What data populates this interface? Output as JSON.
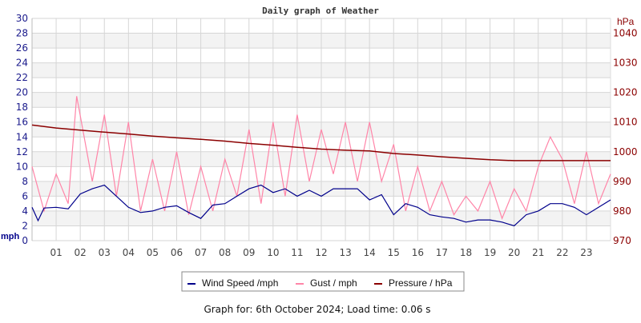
{
  "chart_data": {
    "type": "line",
    "title": "Daily graph of Weather",
    "footer": "Graph for: 6th October 2024; Load time: 0.06 s",
    "x_tick_labels": [
      "01",
      "02",
      "03",
      "04",
      "05",
      "06",
      "07",
      "08",
      "09",
      "10",
      "11",
      "12",
      "13",
      "14",
      "15",
      "16",
      "17",
      "18",
      "19",
      "20",
      "21",
      "22",
      "23"
    ],
    "x_range_hours": [
      0,
      24
    ],
    "left_axis": {
      "label": "mph",
      "range": [
        0,
        30
      ],
      "ticks": [
        0,
        2,
        4,
        6,
        8,
        10,
        12,
        14,
        16,
        18,
        20,
        22,
        24,
        26,
        28,
        30
      ],
      "color": "#1a1a8c"
    },
    "right_axis": {
      "label": "hPa",
      "range": [
        970,
        1045
      ],
      "ticks": [
        970,
        980,
        990,
        1000,
        1010,
        1020,
        1030,
        1040
      ],
      "color": "#8b0000"
    },
    "grid": true,
    "legend_placement": "bottom",
    "series": [
      {
        "name": "Wind Speed /mph",
        "axis": "left",
        "color": "#00008b",
        "x": [
          0,
          0.25,
          0.5,
          1,
          1.5,
          2,
          2.5,
          3,
          3.5,
          4,
          4.5,
          5,
          5.5,
          6,
          6.5,
          7,
          7.5,
          8,
          8.5,
          9,
          9.5,
          10,
          10.5,
          11,
          11.5,
          12,
          12.5,
          13,
          13.5,
          14,
          14.5,
          15,
          15.5,
          16,
          16.5,
          17,
          17.5,
          18,
          18.5,
          19,
          19.5,
          20,
          20.5,
          21,
          21.5,
          22,
          22.5,
          23,
          23.5,
          24
        ],
        "values": [
          4.5,
          2.7,
          4.4,
          4.5,
          4.3,
          6.3,
          7.0,
          7.5,
          6.0,
          4.5,
          3.8,
          4.0,
          4.5,
          4.7,
          3.8,
          3.0,
          4.8,
          5.0,
          6.0,
          7.0,
          7.5,
          6.5,
          7.0,
          6.0,
          6.8,
          6.0,
          7.0,
          7.0,
          7.0,
          5.5,
          6.2,
          3.5,
          5.0,
          4.5,
          3.5,
          3.2,
          3.0,
          2.5,
          2.8,
          2.8,
          2.5,
          2.0,
          3.5,
          4.0,
          5.0,
          5.0,
          4.5,
          3.5,
          4.5,
          5.5
        ]
      },
      {
        "name": "Gust / mph",
        "axis": "left",
        "color": "#ff85a8",
        "x": [
          0,
          0.5,
          1,
          1.5,
          1.85,
          2.5,
          3,
          3.5,
          4,
          4.5,
          5,
          5.5,
          6,
          6.5,
          7,
          7.5,
          8,
          8.5,
          9,
          9.5,
          10,
          10.5,
          11,
          11.5,
          12,
          12.5,
          13,
          13.5,
          14,
          14.5,
          15,
          15.5,
          16,
          16.5,
          17,
          17.5,
          18,
          18.5,
          19,
          19.5,
          20,
          20.5,
          21,
          21.5,
          22,
          22.5,
          23,
          23.5,
          24
        ],
        "values": [
          10,
          4,
          9,
          5,
          19.5,
          8,
          17,
          6,
          16,
          4,
          11,
          4,
          12,
          3.5,
          10,
          4,
          11,
          6,
          15,
          5,
          16,
          6,
          17,
          8,
          15,
          9,
          16,
          8,
          16,
          8,
          13,
          4,
          10,
          4,
          8,
          3.5,
          6,
          4,
          8,
          3,
          7,
          4,
          10,
          14,
          11,
          5,
          12,
          5,
          9
        ]
      },
      {
        "name": "Pressure / hPa",
        "axis": "right",
        "color": "#8b0000",
        "x": [
          0,
          1,
          2,
          3,
          4,
          5,
          6,
          7,
          8,
          9,
          10,
          11,
          12,
          13,
          14,
          15,
          16,
          17,
          18,
          19,
          20,
          21,
          22,
          23,
          24
        ],
        "values": [
          1009,
          1008,
          1007.3,
          1006.6,
          1006,
          1005.3,
          1004.7,
          1004.2,
          1003.6,
          1002.8,
          1002.2,
          1001.5,
          1000.9,
          1000.5,
          1000.3,
          999.4,
          998.9,
          998.3,
          997.8,
          997.3,
          997,
          997,
          997,
          997,
          997
        ]
      }
    ]
  }
}
